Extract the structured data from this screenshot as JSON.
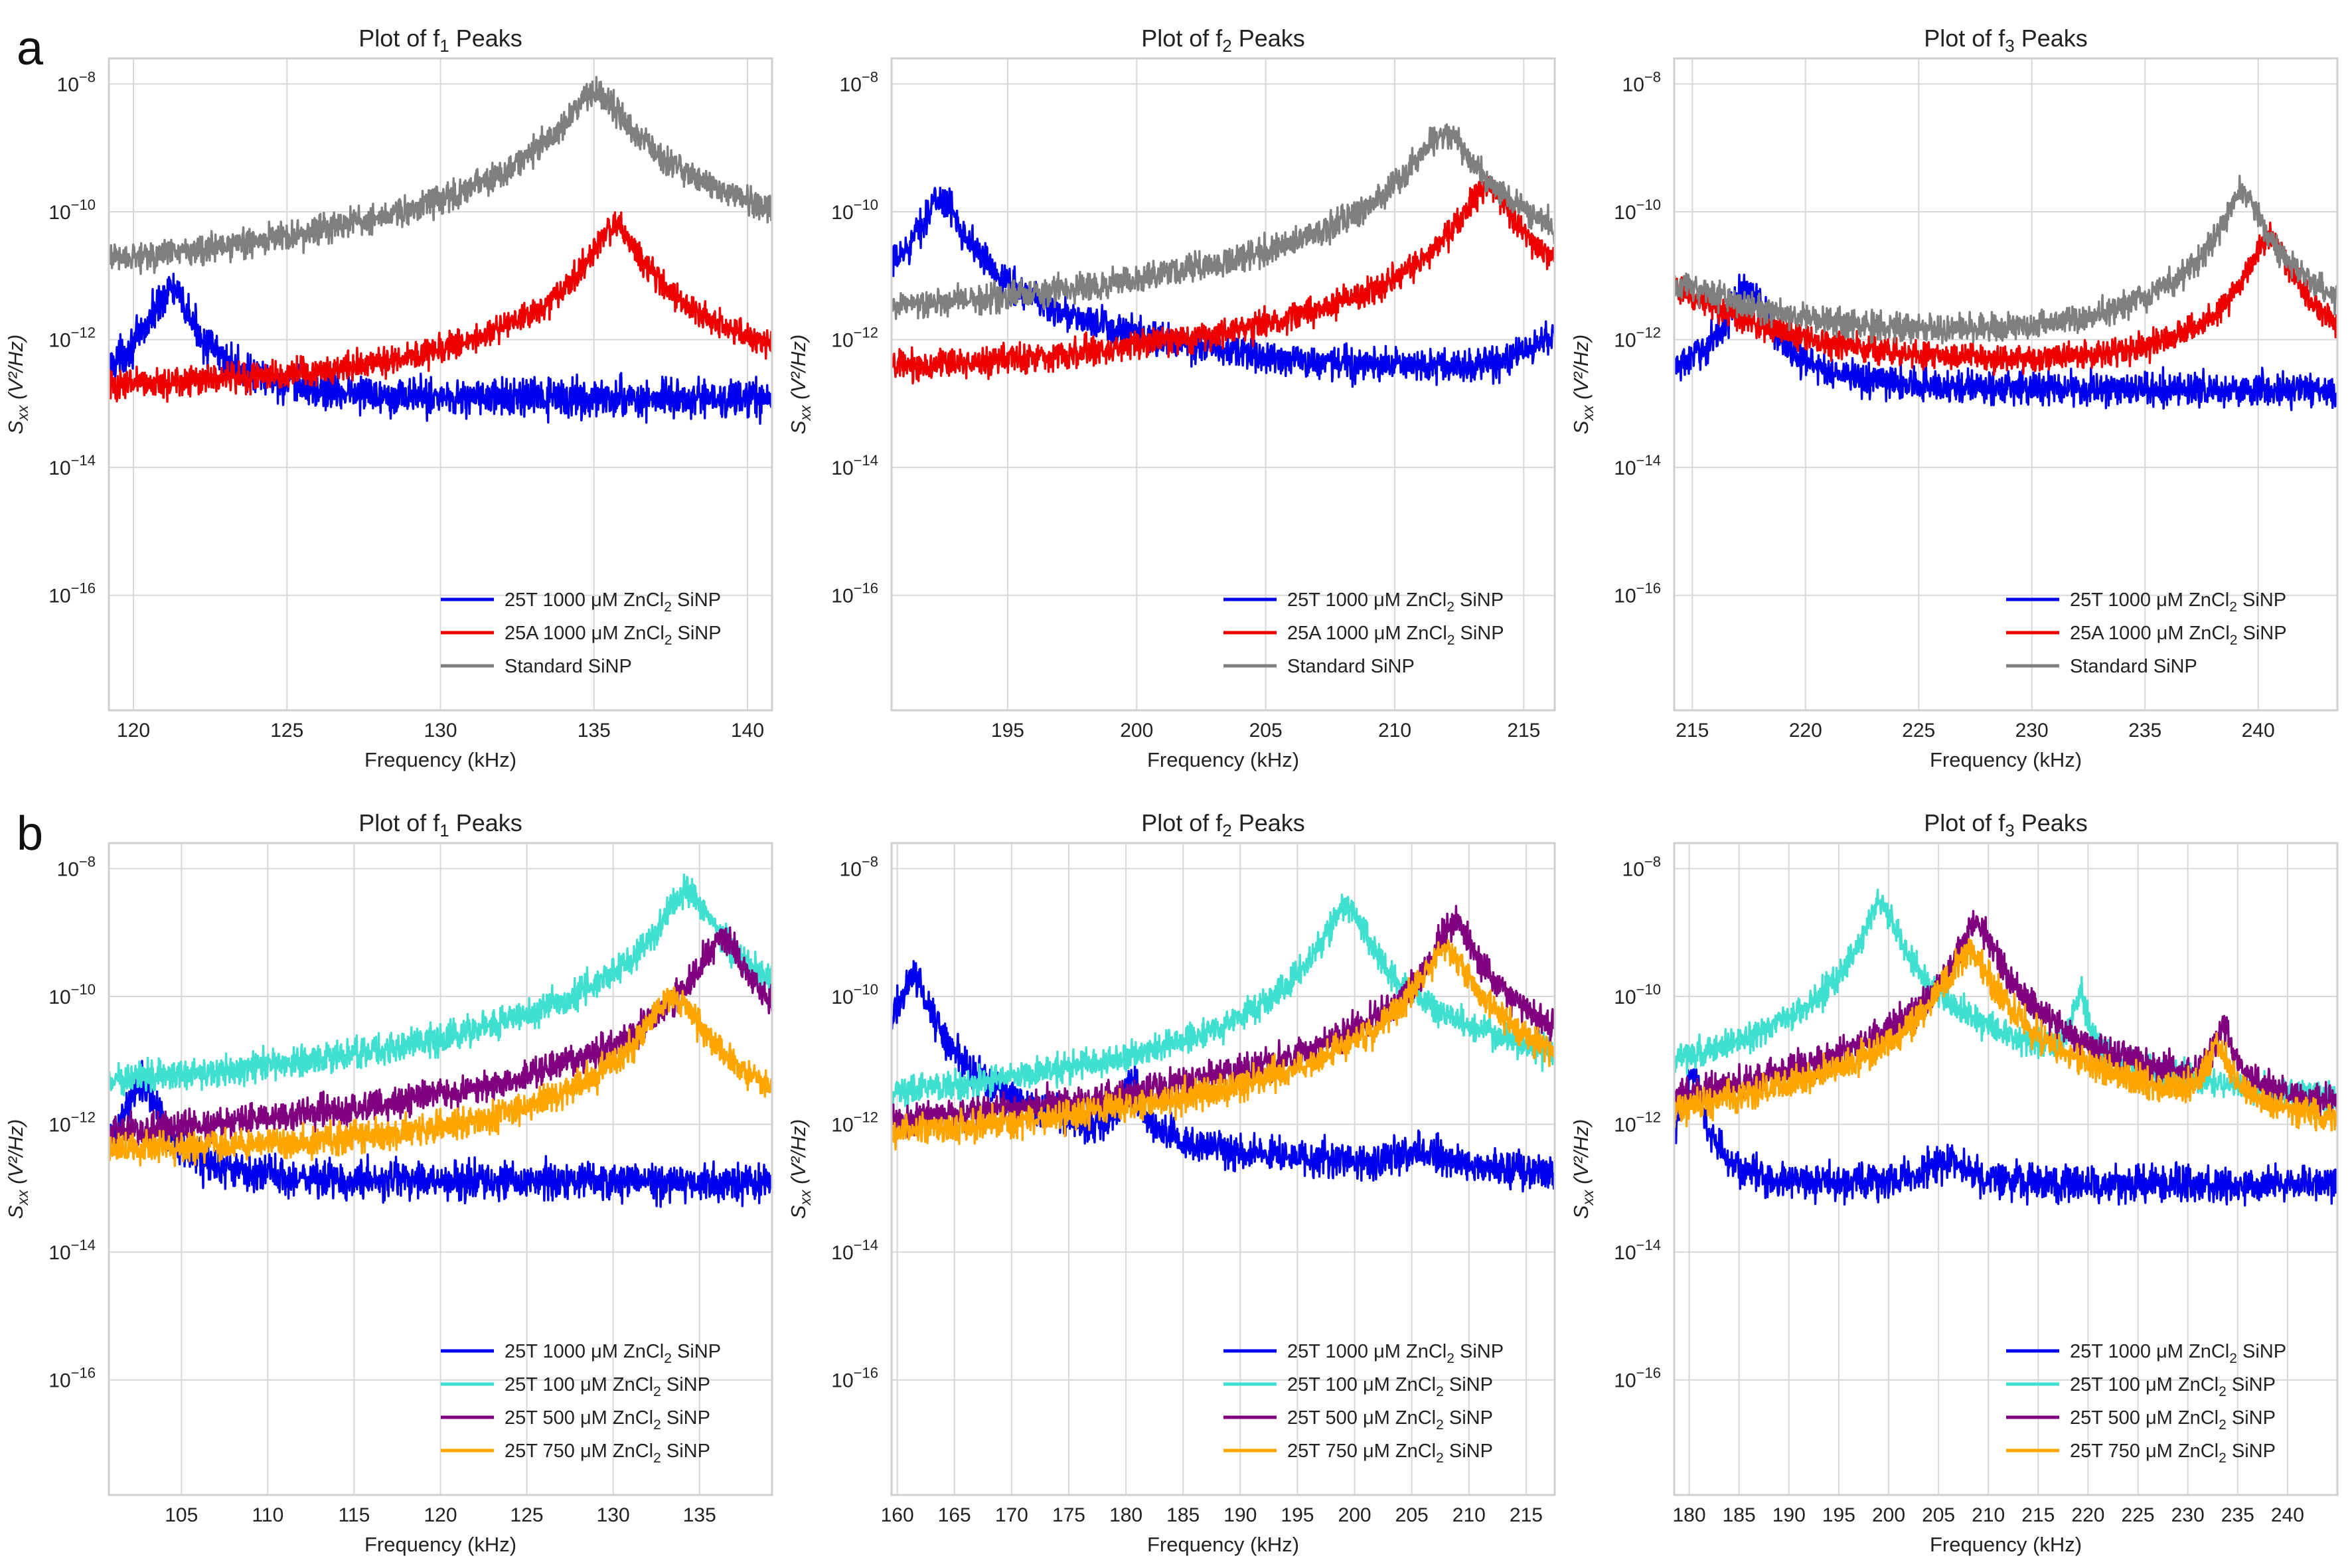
{
  "figure": {
    "row_labels": [
      "a",
      "b"
    ]
  },
  "chart_data": [
    {
      "type": "line",
      "row": "a",
      "col": 0,
      "title": "Plot of f",
      "title_sub": "1",
      "title_tail": " Peaks",
      "xlabel": "Frequency (kHz)",
      "ylabel_main": "S",
      "ylabel_sub": "xx",
      "ylabel_tail": " (V²/Hz)",
      "xlim": [
        119.2,
        140.8
      ],
      "xticks": [
        120,
        125,
        130,
        135,
        140
      ],
      "ylim_log10": [
        -17.8,
        -7.6
      ],
      "yticks_log10": [
        -8,
        -10,
        -12,
        -14,
        -16
      ],
      "series": [
        {
          "name_pre": "25T 1000 μM ZnCl",
          "name_sub": "2",
          "name_post": " SiNP",
          "color": "#0000ee",
          "baseline_log10": -12.95,
          "noise": 0.18,
          "peaks": [
            {
              "center": 121.2,
              "peak_log10": -11.2,
              "width": 0.45
            }
          ]
        },
        {
          "name_pre": "25A 1000 μM ZnCl",
          "name_sub": "2",
          "name_post": " SiNP",
          "color": "#ee0000",
          "baseline_log10": -12.9,
          "noise": 0.14,
          "peaks": [
            {
              "center": 135.7,
              "peak_log10": -10.2,
              "width": 0.55
            }
          ]
        },
        {
          "name_pre": "Standard SiNP",
          "name_sub": "",
          "name_post": "",
          "color": "#7f7f7f",
          "baseline_log10": -11.7,
          "noise": 0.14,
          "peaks": [
            {
              "center": 135.0,
              "peak_log10": -8.15,
              "width": 0.75
            }
          ]
        }
      ]
    },
    {
      "type": "line",
      "row": "a",
      "col": 1,
      "title": "Plot of f",
      "title_sub": "2",
      "title_tail": " Peaks",
      "xlabel": "Frequency (kHz)",
      "ylabel_main": "S",
      "ylabel_sub": "xx",
      "ylabel_tail": " (V²/Hz)",
      "xlim": [
        190.5,
        216.2
      ],
      "xticks": [
        195,
        200,
        205,
        210,
        215
      ],
      "ylim_log10": [
        -17.8,
        -7.6
      ],
      "yticks_log10": [
        -8,
        -10,
        -12,
        -14,
        -16
      ],
      "series": [
        {
          "name_pre": "25T 1000 μM ZnCl",
          "name_sub": "2",
          "name_post": " SiNP",
          "color": "#0000ee",
          "baseline_log10": -12.75,
          "noise": 0.16,
          "peaks": [
            {
              "center": 192.4,
              "peak_log10": -9.8,
              "width": 0.6
            },
            {
              "center": 217.0,
              "peak_log10": -11.6,
              "width": 0.8
            }
          ]
        },
        {
          "name_pre": "25A 1000 μM ZnCl",
          "name_sub": "2",
          "name_post": " SiNP",
          "color": "#ee0000",
          "baseline_log10": -12.85,
          "noise": 0.14,
          "peaks": [
            {
              "center": 213.6,
              "peak_log10": -9.6,
              "width": 0.7
            }
          ]
        },
        {
          "name_pre": "Standard SiNP",
          "name_sub": "",
          "name_post": "",
          "color": "#7f7f7f",
          "baseline_log10": -12.1,
          "noise": 0.14,
          "peaks": [
            {
              "center": 211.9,
              "peak_log10": -8.8,
              "width": 0.85
            }
          ]
        }
      ]
    },
    {
      "type": "line",
      "row": "a",
      "col": 2,
      "title": "Plot of f",
      "title_sub": "3",
      "title_tail": " Peaks",
      "xlabel": "Frequency (kHz)",
      "ylabel_main": "S",
      "ylabel_sub": "xx",
      "ylabel_tail": " (V²/Hz)",
      "xlim": [
        214.2,
        243.5
      ],
      "xticks": [
        215,
        220,
        225,
        230,
        235,
        240
      ],
      "ylim_log10": [
        -17.8,
        -7.6
      ],
      "yticks_log10": [
        -8,
        -10,
        -12,
        -14,
        -16
      ],
      "series": [
        {
          "name_pre": "25T 1000 μM ZnCl",
          "name_sub": "2",
          "name_post": " SiNP",
          "color": "#0000ee",
          "baseline_log10": -12.8,
          "noise": 0.16,
          "peaks": [
            {
              "center": 217.4,
              "peak_log10": -11.2,
              "width": 0.6
            }
          ]
        },
        {
          "name_pre": "25A 1000 μM ZnCl",
          "name_sub": "2",
          "name_post": " SiNP",
          "color": "#ee0000",
          "baseline_log10": -12.6,
          "noise": 0.13,
          "peaks": [
            {
              "center": 240.5,
              "peak_log10": -10.4,
              "width": 0.6
            },
            {
              "center": 213.5,
              "peak_log10": -11.2,
              "width": 2.5
            }
          ]
        },
        {
          "name_pre": "Standard SiNP",
          "name_sub": "",
          "name_post": "",
          "color": "#7f7f7f",
          "baseline_log10": -12.25,
          "noise": 0.13,
          "peaks": [
            {
              "center": 239.3,
              "peak_log10": -9.7,
              "width": 0.6
            },
            {
              "center": 213.0,
              "peak_log10": -11.1,
              "width": 3.5
            }
          ]
        }
      ]
    },
    {
      "type": "line",
      "row": "b",
      "col": 0,
      "title": "Plot of f",
      "title_sub": "1",
      "title_tail": " Peaks",
      "xlabel": "Frequency (kHz)",
      "ylabel_main": "S",
      "ylabel_sub": "xx",
      "ylabel_tail": " (V²/Hz)",
      "xlim": [
        100.8,
        139.2
      ],
      "xticks": [
        105,
        110,
        115,
        120,
        125,
        130,
        135
      ],
      "ylim_log10": [
        -17.8,
        -7.6
      ],
      "yticks_log10": [
        -8,
        -10,
        -12,
        -14,
        -16
      ],
      "series": [
        {
          "name_pre": "25T 1000 μM ZnCl",
          "name_sub": "2",
          "name_post": " SiNP",
          "color": "#0000ee",
          "baseline_log10": -12.9,
          "noise": 0.18,
          "peaks": [
            {
              "center": 102.7,
              "peak_log10": -11.3,
              "width": 0.6
            }
          ]
        },
        {
          "name_pre": "25T 100 μM ZnCl",
          "name_sub": "2",
          "name_post": " SiNP",
          "color": "#40e0d0",
          "baseline_log10": -12.05,
          "noise": 0.15,
          "peaks": [
            {
              "center": 134.3,
              "peak_log10": -8.35,
              "width": 1.0
            }
          ]
        },
        {
          "name_pre": "25T 500 μM ZnCl",
          "name_sub": "2",
          "name_post": " SiNP",
          "color": "#800080",
          "baseline_log10": -12.75,
          "noise": 0.15,
          "peaks": [
            {
              "center": 136.3,
              "peak_log10": -9.05,
              "width": 0.9
            }
          ]
        },
        {
          "name_pre": "25T 750 μM ZnCl",
          "name_sub": "2",
          "name_post": " SiNP",
          "color": "#ffa500",
          "baseline_log10": -12.55,
          "noise": 0.15,
          "peaks": [
            {
              "center": 133.5,
              "peak_log10": -10.0,
              "width": 1.1
            }
          ]
        }
      ]
    },
    {
      "type": "line",
      "row": "b",
      "col": 1,
      "title": "Plot of f",
      "title_sub": "2",
      "title_tail": " Peaks",
      "xlabel": "Frequency (kHz)",
      "ylabel_main": "S",
      "ylabel_sub": "xx",
      "ylabel_tail": " (V²/Hz)",
      "xlim": [
        159.5,
        217.5
      ],
      "xticks": [
        160,
        165,
        170,
        175,
        180,
        185,
        190,
        195,
        200,
        205,
        210,
        215
      ],
      "ylim_log10": [
        -17.8,
        -7.6
      ],
      "yticks_log10": [
        -8,
        -10,
        -12,
        -14,
        -16
      ],
      "series": [
        {
          "name_pre": "25T 1000 μM ZnCl",
          "name_sub": "2",
          "name_post": " SiNP",
          "color": "#0000ee",
          "baseline_log10": -12.95,
          "noise": 0.17,
          "peaks": [
            {
              "center": 161.4,
              "peak_log10": -9.7,
              "width": 1.0
            },
            {
              "center": 180.5,
              "peak_log10": -11.3,
              "width": 0.6
            },
            {
              "center": 206.0,
              "peak_log10": -12.55,
              "width": 2.0
            }
          ]
        },
        {
          "name_pre": "25T 100 μM ZnCl",
          "name_sub": "2",
          "name_post": " SiNP",
          "color": "#40e0d0",
          "baseline_log10": -12.2,
          "noise": 0.14,
          "peaks": [
            {
              "center": 199.2,
              "peak_log10": -8.55,
              "width": 1.2
            }
          ]
        },
        {
          "name_pre": "25T 500 μM ZnCl",
          "name_sub": "2",
          "name_post": " SiNP",
          "color": "#800080",
          "baseline_log10": -12.75,
          "noise": 0.15,
          "peaks": [
            {
              "center": 208.8,
              "peak_log10": -8.85,
              "width": 1.3
            }
          ]
        },
        {
          "name_pre": "25T 750 μM ZnCl",
          "name_sub": "2",
          "name_post": " SiNP",
          "color": "#ffa500",
          "baseline_log10": -12.7,
          "noise": 0.15,
          "peaks": [
            {
              "center": 208.0,
              "peak_log10": -9.3,
              "width": 1.6
            }
          ]
        }
      ]
    },
    {
      "type": "line",
      "row": "b",
      "col": 2,
      "title": "Plot of f",
      "title_sub": "3",
      "title_tail": " Peaks",
      "xlabel": "Frequency (kHz)",
      "ylabel_main": "S",
      "ylabel_sub": "xx",
      "ylabel_tail": " (V²/Hz)",
      "xlim": [
        178.5,
        245.0
      ],
      "xticks": [
        180,
        185,
        190,
        195,
        200,
        205,
        210,
        215,
        220,
        225,
        230,
        235,
        240
      ],
      "ylim_log10": [
        -17.8,
        -7.6
      ],
      "yticks_log10": [
        -8,
        -10,
        -12,
        -14,
        -16
      ],
      "series": [
        {
          "name_pre": "25T 1000 μM ZnCl",
          "name_sub": "2",
          "name_post": " SiNP",
          "color": "#0000ee",
          "baseline_log10": -12.95,
          "noise": 0.17,
          "peaks": [
            {
              "center": 180.3,
              "peak_log10": -11.2,
              "width": 0.6
            },
            {
              "center": 206.0,
              "peak_log10": -12.6,
              "width": 2.0
            }
          ]
        },
        {
          "name_pre": "25T 100 μM ZnCl",
          "name_sub": "2",
          "name_post": " SiNP",
          "color": "#40e0d0",
          "baseline_log10": -12.15,
          "noise": 0.14,
          "peaks": [
            {
              "center": 199.2,
              "peak_log10": -8.55,
              "width": 1.2
            },
            {
              "center": 219.2,
              "peak_log10": -10.0,
              "width": 0.6
            }
          ]
        },
        {
          "name_pre": "25T 500 μM ZnCl",
          "name_sub": "2",
          "name_post": " SiNP",
          "color": "#800080",
          "baseline_log10": -12.75,
          "noise": 0.15,
          "peaks": [
            {
              "center": 208.8,
              "peak_log10": -8.85,
              "width": 1.3
            },
            {
              "center": 233.5,
              "peak_log10": -10.55,
              "width": 0.8
            }
          ]
        },
        {
          "name_pre": "25T 750 μM ZnCl",
          "name_sub": "2",
          "name_post": " SiNP",
          "color": "#ffa500",
          "baseline_log10": -12.55,
          "noise": 0.15,
          "peaks": [
            {
              "center": 208.0,
              "peak_log10": -9.3,
              "width": 1.6
            },
            {
              "center": 233.0,
              "peak_log10": -10.8,
              "width": 0.9
            }
          ]
        }
      ]
    }
  ]
}
